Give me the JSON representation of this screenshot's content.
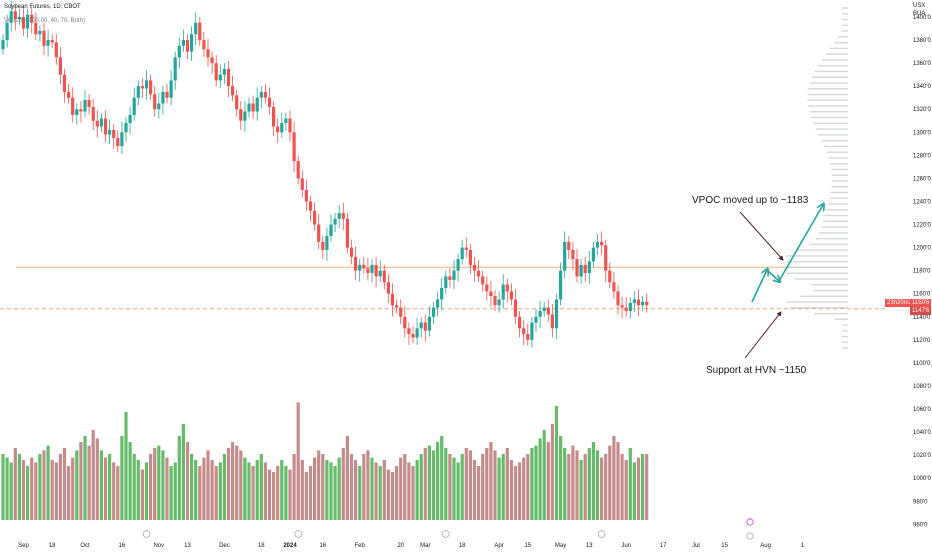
{
  "header": {
    "title": "Soybean Futures, 1D, CBOT",
    "volume_indicator": "VP (200, 100.00, 40, 70, Both)"
  },
  "axis": {
    "currency": "USX",
    "unit": "BUA"
  },
  "price_tags": {
    "countdown": "23h20m24",
    "last_price": "1150'6",
    "red_tag": "1147'6"
  },
  "annotations": [
    {
      "text": "VPOC moved up to ~1183"
    },
    {
      "text": "Support at HVN ~1150"
    }
  ],
  "colors": {
    "up": "#26a69a",
    "down": "#ef5350",
    "vol_up": "#66bb6a",
    "vol_down": "#c48b8b",
    "vpoc_line": "#f7b27a",
    "support_line": "#f4a17a",
    "arrow": "#26a69a",
    "annotation_arrow": "#4a1f1f",
    "profile": "#c8cdd6"
  },
  "chart_data": {
    "type": "candlestick",
    "title": "",
    "ylim": [
      950,
      1410
    ],
    "y_ticks": [
      "960'0",
      "980'0",
      "1000'0",
      "1020'0",
      "1040'0",
      "1060'0",
      "1080'0",
      "1100'0",
      "1120'0",
      "1140'0",
      "1160'0",
      "1180'0",
      "1200'0",
      "1220'0",
      "1240'0",
      "1260'0",
      "1280'0",
      "1300'0",
      "1320'0",
      "1340'0",
      "1360'0",
      "1380'0",
      "1400'0"
    ],
    "x_ticks": [
      {
        "label": "Sep",
        "bar": 5
      },
      {
        "label": "18",
        "bar": 12
      },
      {
        "label": "Oct",
        "bar": 20
      },
      {
        "label": "16",
        "bar": 29
      },
      {
        "label": "Nov",
        "bar": 38
      },
      {
        "label": "13",
        "bar": 45
      },
      {
        "label": "Dec",
        "bar": 54
      },
      {
        "label": "18",
        "bar": 63
      },
      {
        "label": "2024",
        "bar": 70
      },
      {
        "label": "16",
        "bar": 78
      },
      {
        "label": "Feb",
        "bar": 87
      },
      {
        "label": "20",
        "bar": 97
      },
      {
        "label": "Mar",
        "bar": 103
      },
      {
        "label": "18",
        "bar": 112
      },
      {
        "label": "Apr",
        "bar": 121
      },
      {
        "label": "15",
        "bar": 128
      },
      {
        "label": "May",
        "bar": 136
      },
      {
        "label": "13",
        "bar": 143
      },
      {
        "label": "Jun",
        "bar": 152
      },
      {
        "label": "17",
        "bar": 161
      },
      {
        "label": "Jul",
        "bar": 169
      },
      {
        "label": "15",
        "bar": 176
      },
      {
        "label": "Aug",
        "bar": 186
      },
      {
        "label": "1",
        "bar": 195
      }
    ],
    "close": [
      1380,
      1395,
      1405,
      1398,
      1400,
      1390,
      1402,
      1395,
      1385,
      1388,
      1375,
      1380,
      1378,
      1365,
      1350,
      1335,
      1330,
      1315,
      1320,
      1318,
      1328,
      1322,
      1310,
      1305,
      1312,
      1298,
      1302,
      1295,
      1288,
      1300,
      1308,
      1315,
      1330,
      1340,
      1338,
      1345,
      1333,
      1320,
      1325,
      1335,
      1330,
      1345,
      1365,
      1375,
      1380,
      1370,
      1385,
      1395,
      1380,
      1372,
      1365,
      1360,
      1345,
      1350,
      1355,
      1340,
      1332,
      1320,
      1310,
      1318,
      1325,
      1318,
      1330,
      1335,
      1330,
      1322,
      1305,
      1300,
      1308,
      1312,
      1300,
      1275,
      1260,
      1250,
      1240,
      1232,
      1220,
      1205,
      1198,
      1210,
      1220,
      1225,
      1230,
      1225,
      1200,
      1192,
      1180,
      1185,
      1182,
      1178,
      1185,
      1175,
      1180,
      1170,
      1160,
      1150,
      1148,
      1140,
      1130,
      1125,
      1122,
      1130,
      1135,
      1128,
      1140,
      1148,
      1155,
      1165,
      1175,
      1172,
      1180,
      1190,
      1200,
      1198,
      1185,
      1180,
      1175,
      1168,
      1162,
      1158,
      1150,
      1155,
      1168,
      1162,
      1155,
      1140,
      1130,
      1125,
      1120,
      1135,
      1140,
      1145,
      1148,
      1142,
      1130,
      1155,
      1180,
      1205,
      1198,
      1190,
      1175,
      1185,
      1178,
      1188,
      1200,
      1205,
      1202,
      1180,
      1170,
      1162,
      1150,
      1148,
      1145,
      1152,
      1155,
      1150,
      1153,
      1150
    ],
    "volume_ylim": [
      0,
      100
    ],
    "volume": [
      55,
      52,
      48,
      60,
      55,
      50,
      45,
      52,
      48,
      55,
      58,
      62,
      50,
      48,
      55,
      60,
      45,
      52,
      58,
      65,
      70,
      62,
      75,
      68,
      58,
      52,
      55,
      48,
      45,
      70,
      90,
      65,
      55,
      50,
      42,
      48,
      55,
      60,
      62,
      58,
      52,
      45,
      48,
      70,
      80,
      65,
      55,
      50,
      45,
      52,
      58,
      50,
      45,
      48,
      55,
      60,
      65,
      62,
      58,
      52,
      48,
      45,
      50,
      55,
      48,
      42,
      40,
      45,
      50,
      45,
      42,
      55,
      98,
      50,
      40,
      45,
      52,
      58,
      55,
      50,
      48,
      45,
      52,
      60,
      70,
      55,
      50,
      45,
      55,
      58,
      52,
      48,
      45,
      50,
      42,
      40,
      45,
      52,
      55,
      48,
      45,
      50,
      55,
      60,
      62,
      58,
      65,
      70,
      60,
      55,
      52,
      48,
      55,
      60,
      58,
      50,
      45,
      55,
      60,
      65,
      58,
      52,
      55,
      60,
      50,
      45,
      48,
      52,
      55,
      60,
      62,
      68,
      75,
      65,
      80,
      95,
      70,
      60,
      55,
      62,
      58,
      50,
      55,
      60,
      65,
      58,
      52,
      55,
      62,
      70,
      65,
      55,
      50,
      60,
      48,
      52,
      55,
      55
    ],
    "volume_profile": {
      "price_levels_step": 5,
      "price_min": 1112,
      "price_max": 1410,
      "vpoc": 1183,
      "hvn_support": 1150
    }
  }
}
